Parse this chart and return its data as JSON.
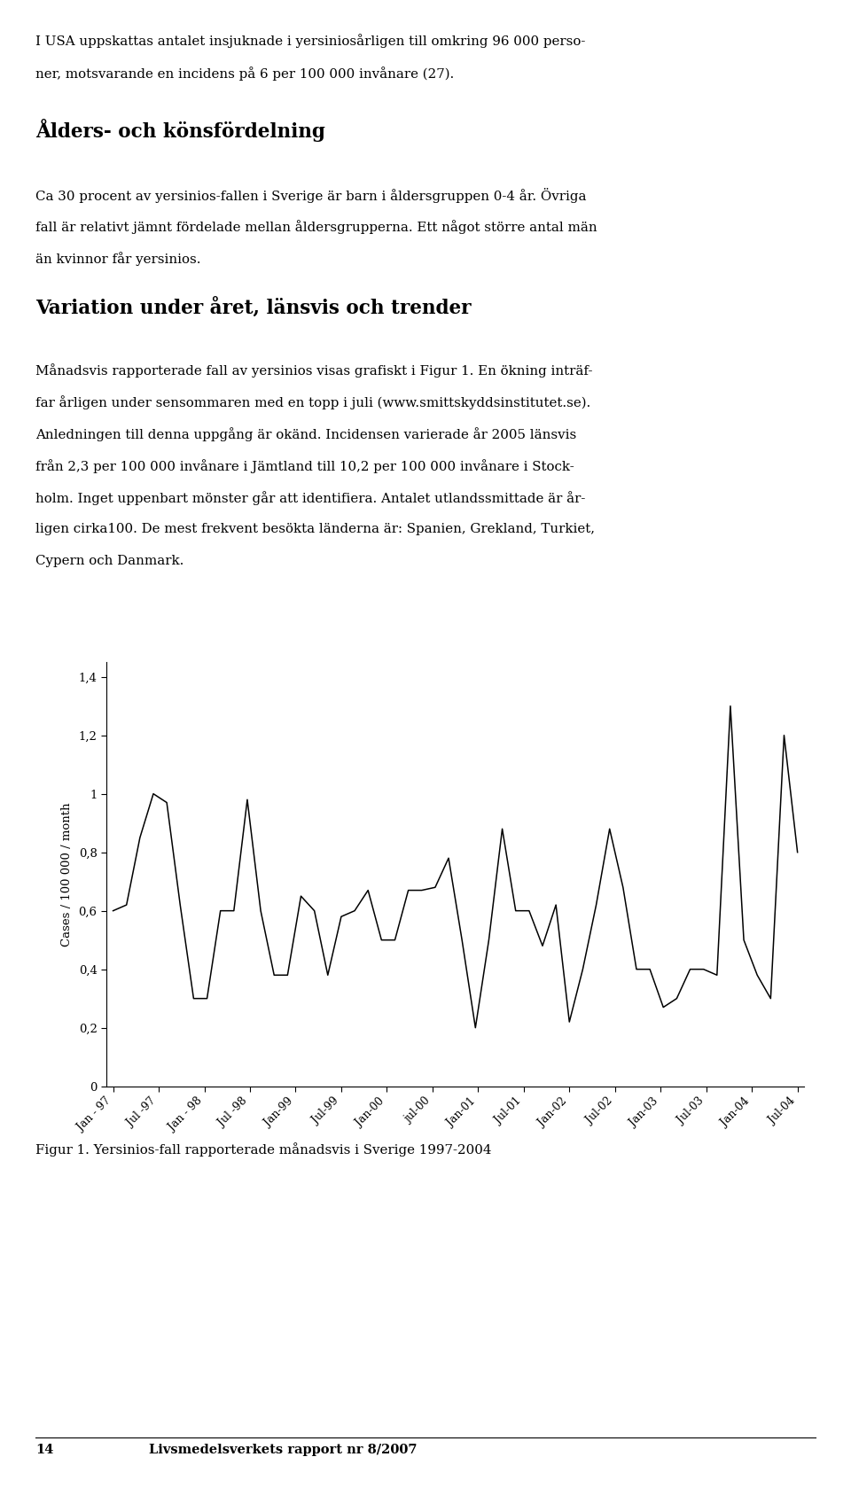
{
  "line1": "I USA uppskattas antalet insjuknade i yersiniosårligen till omkring 96 000 perso-",
  "line2": "ner, motsvarande en incidens på 6 per 100 000 invånare (27).",
  "heading1": "Ålders- och könsfördelning",
  "body1_lines": [
    "Ca 30 procent av yersinios-fallen i Sverige är barn i åldersgruppen 0-4 år. Övriga",
    "fall är relativt jämnt fördelade mellan åldersgrupperna. Ett något större antal män",
    "än kvinnor får yersinios."
  ],
  "heading2": "Variation under året, länsvis och trender",
  "body2_lines": [
    "Månadsvis rapporterade fall av yersinios visas grafiskt i Figur 1. En ökning inträf-",
    "far årligen under sensommaren med en topp i juli (www.smittskyddsinstitutet.se).",
    "Anledningen till denna uppgång är okänd. Incidensen varierade år 2005 länsvis",
    "från 2,3 per 100 000 invånare i Jämtland till 10,2 per 100 000 invånare i Stock-",
    "holm. Inget uppenbart mönster går att identifiera. Antalet utlandssmittade är år-",
    "ligen cirka100. De mest frekvent besökta länderna är: Spanien, Grekland, Turkiet,",
    "Cypern och Danmark."
  ],
  "ylabel": "Cases / 100 000 / month",
  "fig_caption": "Figur 1. Yersinios-fall rapporterade månadsvis i Sverige 1997-2004",
  "footer_num": "14",
  "footer_text": "Livsmedelsverkets rapport nr 8/2007",
  "yticks": [
    0,
    0.2,
    0.4,
    0.6,
    0.8,
    1.0,
    1.2,
    1.4
  ],
  "ylim": [
    0,
    1.45
  ],
  "xtick_labels": [
    "Jan - 97",
    "Jul -97",
    "Jan - 98",
    "Jul -98",
    "Jan-99",
    "Jul-99",
    "Jan-00",
    "jul-00",
    "Jan-01",
    "Jul-01",
    "Jan-02",
    "Jul-02",
    "Jan-03",
    "Jul-03",
    "Jan-04",
    "Jul-04"
  ],
  "values": [
    0.6,
    0.62,
    0.85,
    1.0,
    0.97,
    0.62,
    0.3,
    0.3,
    0.6,
    0.6,
    0.98,
    0.6,
    0.38,
    0.38,
    0.65,
    0.6,
    0.38,
    0.58,
    0.6,
    0.67,
    0.5,
    0.5,
    0.67,
    0.67,
    0.68,
    0.78,
    0.5,
    0.2,
    0.5,
    0.88,
    0.6,
    0.6,
    0.48,
    0.62,
    0.22,
    0.4,
    0.62,
    0.88,
    0.68,
    0.4,
    0.4,
    0.27,
    0.3,
    0.4,
    0.4,
    0.38,
    1.3,
    0.5,
    0.38,
    0.3,
    1.2,
    0.8
  ],
  "line_color": "#000000",
  "background_color": "#ffffff"
}
